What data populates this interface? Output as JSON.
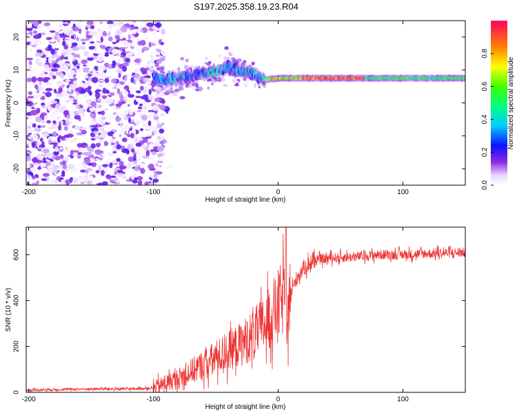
{
  "title": "S197.2025.358.19.23.R04",
  "chart_data": [
    {
      "type": "heatmap",
      "xlabel": "Height of straight line (km)",
      "ylabel": "Frequency (Hz)",
      "xlim": [
        -202,
        150
      ],
      "ylim": [
        -25,
        25
      ],
      "xticks": [
        -200,
        -100,
        0,
        100
      ],
      "yticks": [
        -20,
        -10,
        0,
        10,
        20
      ],
      "colorbar": {
        "label": "Normalized spectral amplitude",
        "range": [
          0.0,
          1.0
        ],
        "ticks": [
          0.0,
          0.2,
          0.4,
          0.6,
          0.8
        ]
      },
      "signal_track": {
        "description_points_x": [
          -100,
          -90,
          -80,
          -70,
          -60,
          -50,
          -40,
          -30,
          -20,
          -10,
          0,
          10,
          20,
          40,
          60,
          80,
          100,
          120,
          150
        ],
        "frequency": [
          8,
          7,
          7.5,
          8,
          9,
          9.5,
          11,
          10,
          9,
          7,
          7.5,
          7.5,
          7.5,
          7.5,
          7.5,
          7.5,
          7.5,
          7.5,
          7.5
        ]
      }
    },
    {
      "type": "line",
      "xlabel": "Height of straight line (km)",
      "ylabel": "SNR (10 * v/v)",
      "xlim": [
        -202,
        150
      ],
      "ylim": [
        0,
        720
      ],
      "xticks": [
        -200,
        -100,
        0,
        100
      ],
      "yticks": [
        0,
        200,
        400,
        600
      ],
      "series": [
        {
          "name": "SNR",
          "color": "#ee3333",
          "x": [
            -202,
            -180,
            -160,
            -140,
            -120,
            -100,
            -90,
            -80,
            -70,
            -60,
            -50,
            -40,
            -30,
            -20,
            -10,
            -5,
            0,
            5,
            6,
            7,
            8,
            10,
            15,
            20,
            25,
            30,
            40,
            60,
            80,
            100,
            120,
            150
          ],
          "y": [
            10,
            12,
            14,
            15,
            15,
            18,
            40,
            60,
            90,
            120,
            150,
            180,
            210,
            250,
            300,
            340,
            380,
            420,
            680,
            150,
            400,
            430,
            500,
            540,
            560,
            575,
            585,
            590,
            600,
            600,
            605,
            610
          ]
        }
      ]
    }
  ]
}
